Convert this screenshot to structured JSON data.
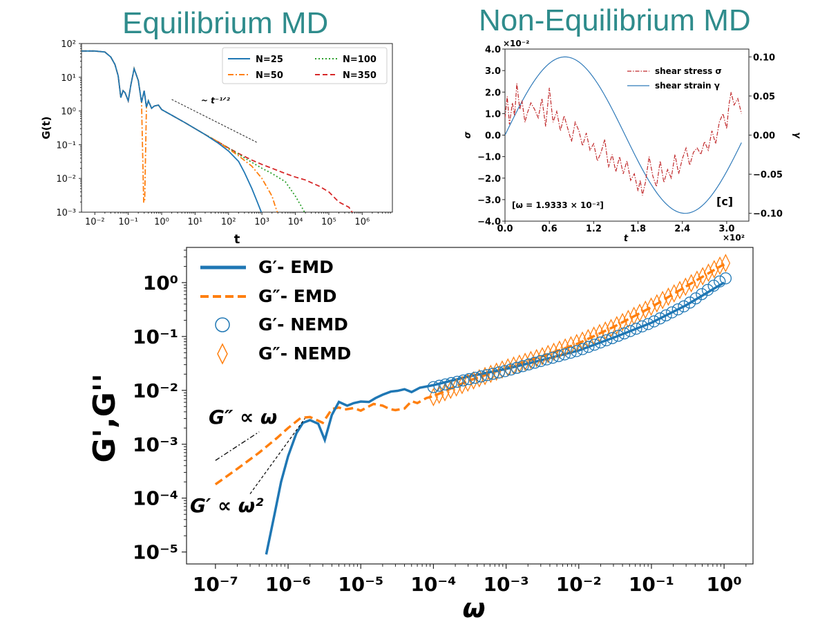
{
  "headings": {
    "left": "Equilibrium MD",
    "right": "Non-Equilibrium MD"
  },
  "chart_data": [
    {
      "id": "emd",
      "type": "line",
      "title": "Equilibrium MD",
      "xlabel": "t",
      "ylabel": "G(t)",
      "xscale": "log",
      "yscale": "log",
      "xlim": [
        0.004,
        8000000
      ],
      "ylim": [
        0.001,
        100
      ],
      "xticks": [
        0.01,
        0.1,
        1,
        10,
        100,
        1000,
        10000,
        100000,
        1000000
      ],
      "xtick_labels": [
        "10⁻²",
        "10⁻¹",
        "10⁰",
        "10¹",
        "10²",
        "10³",
        "10⁴",
        "10⁵",
        "10⁶"
      ],
      "yticks": [
        0.001,
        0.01,
        0.1,
        1,
        10,
        100
      ],
      "ytick_labels": [
        "10⁻³",
        "10⁻²",
        "10⁻¹",
        "10⁰",
        "10¹",
        "10²"
      ],
      "annotation": "~ t⁻¹ᐟ²",
      "slope_line": {
        "x": [
          2,
          700
        ],
        "y": [
          2.2,
          0.118
        ]
      },
      "legend_location": "upper right",
      "series": [
        {
          "name": "N=25",
          "color": "#1f77b4",
          "dash": "solid",
          "x": [
            0.004,
            0.01,
            0.02,
            0.03,
            0.04,
            0.05,
            0.06,
            0.07,
            0.08,
            0.1,
            0.12,
            0.15,
            0.2,
            0.25,
            0.3,
            0.35,
            0.4,
            0.5,
            0.6,
            0.8,
            1,
            2,
            5,
            10,
            20,
            50,
            100,
            200,
            300,
            500,
            700,
            1000
          ],
          "y": [
            60,
            60,
            56,
            40,
            24,
            11,
            2.5,
            4,
            3.5,
            2,
            6,
            18,
            8,
            1.8,
            4,
            1.3,
            2,
            1.2,
            1.4,
            1.5,
            1.1,
            0.75,
            0.45,
            0.3,
            0.2,
            0.11,
            0.065,
            0.032,
            0.015,
            0.005,
            0.0022,
            0.0009
          ]
        },
        {
          "name": "N=50",
          "color": "#ff7f0e",
          "dash": "dashdot",
          "x": [
            0.004,
            0.01,
            0.02,
            0.03,
            0.04,
            0.05,
            0.06,
            0.07,
            0.08,
            0.1,
            0.12,
            0.15,
            0.2,
            0.25,
            0.29,
            0.31,
            0.35,
            0.4,
            0.5,
            0.6,
            0.8,
            1,
            2,
            5,
            10,
            20,
            50,
            100,
            200,
            500,
            1000,
            2000,
            2500,
            3000
          ],
          "y": [
            60,
            60,
            56,
            40,
            24,
            11,
            2.5,
            4,
            3.5,
            2,
            6,
            18,
            8,
            1.8,
            0.002,
            0.002,
            1.3,
            2,
            1.2,
            1.4,
            1.5,
            1.1,
            0.75,
            0.45,
            0.3,
            0.2,
            0.12,
            0.075,
            0.047,
            0.023,
            0.01,
            0.003,
            0.0015,
            0.0009
          ]
        },
        {
          "name": "N=100",
          "color": "#2ca02c",
          "dash": "dotted",
          "x": [
            0.004,
            0.01,
            0.02,
            0.03,
            0.04,
            0.05,
            0.06,
            0.07,
            0.08,
            0.1,
            0.12,
            0.15,
            0.2,
            0.25,
            0.3,
            0.35,
            0.4,
            0.5,
            0.6,
            0.8,
            1,
            2,
            5,
            10,
            20,
            50,
            100,
            200,
            500,
            1000,
            2000,
            5000,
            10000,
            15000,
            20000
          ],
          "y": [
            60,
            60,
            56,
            40,
            24,
            11,
            2.5,
            4,
            3.5,
            2,
            6,
            18,
            8,
            1.8,
            4,
            1.3,
            2,
            1.2,
            1.4,
            1.5,
            1.1,
            0.75,
            0.45,
            0.3,
            0.2,
            0.12,
            0.08,
            0.052,
            0.03,
            0.02,
            0.014,
            0.008,
            0.003,
            0.0015,
            0.0009
          ]
        },
        {
          "name": "N=350",
          "color": "#d62728",
          "dash": "dashed",
          "x": [
            0.004,
            0.01,
            0.02,
            0.03,
            0.04,
            0.05,
            0.06,
            0.07,
            0.08,
            0.1,
            0.12,
            0.15,
            0.2,
            0.25,
            0.3,
            0.35,
            0.4,
            0.5,
            0.6,
            0.8,
            1,
            2,
            5,
            10,
            20,
            50,
            100,
            200,
            500,
            1000,
            2000,
            5000,
            10000,
            20000,
            50000,
            100000,
            200000,
            400000,
            500000,
            600000
          ],
          "y": [
            60,
            60,
            56,
            40,
            24,
            11,
            2.5,
            4,
            3.5,
            2,
            6,
            18,
            8,
            1.8,
            4,
            1.3,
            2,
            1.2,
            1.4,
            1.5,
            1.1,
            0.75,
            0.45,
            0.3,
            0.2,
            0.12,
            0.08,
            0.055,
            0.035,
            0.026,
            0.02,
            0.014,
            0.011,
            0.009,
            0.006,
            0.004,
            0.002,
            0.0014,
            0.001,
            0.0009
          ]
        }
      ]
    },
    {
      "id": "nemd",
      "type": "line",
      "title": "Non-Equilibrium MD",
      "xlabel": "t",
      "ylabel": "σ",
      "ylabel_right": "γ",
      "xlim": [
        0,
        3.3
      ],
      "ylim": [
        -4,
        4
      ],
      "ylim_right": [
        -0.11,
        0.11
      ],
      "xticks": [
        0,
        0.6,
        1.2,
        1.8,
        2.4,
        3.0
      ],
      "xtick_labels": [
        "0.0",
        "0.6",
        "1.2",
        "1.8",
        "2.4",
        "3.0"
      ],
      "yticks": [
        -4,
        -3,
        -2,
        -1,
        0,
        1,
        2,
        3,
        4
      ],
      "ytick_labels": [
        "−4.0",
        "−3.0",
        "−2.0",
        "−1.0",
        "0.0",
        "1.0",
        "2.0",
        "3.0",
        "4.0"
      ],
      "yticks_right": [
        -0.1,
        -0.05,
        0,
        0.05,
        0.1
      ],
      "ytick_labels_right": [
        "−0.10",
        "−0.05",
        "0.00",
        "0.05",
        "0.10"
      ],
      "x_offset_label": "×10²",
      "y_offset_label": "×10⁻²",
      "annotation": "[ω = 1.9333 × 10⁻²]",
      "panel_label": "[c]",
      "legend_location": "upper right",
      "series": [
        {
          "name": "shear stress σ",
          "color": "#c0282a",
          "dash": "dashdot",
          "axis": "left",
          "x": [
            0,
            0.03,
            0.06,
            0.1,
            0.13,
            0.16,
            0.2,
            0.23,
            0.27,
            0.3,
            0.35,
            0.4,
            0.45,
            0.5,
            0.55,
            0.6,
            0.65,
            0.7,
            0.75,
            0.8,
            0.85,
            0.9,
            0.95,
            1.0,
            1.05,
            1.1,
            1.15,
            1.2,
            1.25,
            1.3,
            1.35,
            1.4,
            1.45,
            1.5,
            1.55,
            1.6,
            1.65,
            1.7,
            1.75,
            1.8,
            1.83,
            1.86,
            1.9,
            1.95,
            2.0,
            2.05,
            2.1,
            2.15,
            2.2,
            2.25,
            2.3,
            2.35,
            2.4,
            2.45,
            2.5,
            2.55,
            2.6,
            2.65,
            2.7,
            2.75,
            2.8,
            2.85,
            2.9,
            2.95,
            3.0,
            3.03,
            3.06,
            3.1,
            3.15,
            3.2
          ],
          "y": [
            0.8,
            1.8,
            0.5,
            1.5,
            0.9,
            2.4,
            1.2,
            1.6,
            0.6,
            1.0,
            1.5,
            1.2,
            0.8,
            1.7,
            0.4,
            2.2,
            0.6,
            1.1,
            0.2,
            0.9,
            0.3,
            -0.3,
            0.6,
            0.2,
            -0.5,
            0.1,
            -0.7,
            -0.4,
            -1.2,
            -0.8,
            -0.2,
            -1.5,
            -0.9,
            -1.7,
            -1.0,
            -1.8,
            -1.2,
            -2.1,
            -1.8,
            -2.6,
            -2.1,
            -2.8,
            -2.2,
            -1.0,
            -1.9,
            -2.4,
            -1.2,
            -2.2,
            -1.6,
            -2.0,
            -0.9,
            -1.8,
            -1.1,
            -0.6,
            -1.4,
            -0.8,
            -0.6,
            -0.9,
            -0.3,
            -0.7,
            0.2,
            -0.4,
            0.6,
            1.0,
            0.3,
            1.4,
            2.0,
            1.4,
            1.7,
            1.0
          ]
        },
        {
          "name": "shear strain γ",
          "color": "#2f7ab9",
          "dash": "solid",
          "axis": "right",
          "function": "0.1*sin(x*100*0.019333)"
        }
      ]
    },
    {
      "id": "modulus",
      "type": "line",
      "xlabel": "ω",
      "ylabel": "G',G''",
      "xscale": "log",
      "yscale": "log",
      "xlim": [
        4e-08,
        2.5
      ],
      "ylim": [
        6e-06,
        4.5
      ],
      "xticks": [
        1e-07,
        1e-06,
        1e-05,
        0.0001,
        0.001,
        0.01,
        0.1,
        1
      ],
      "xtick_labels": [
        "10⁻⁷",
        "10⁻⁶",
        "10⁻⁵",
        "10⁻⁴",
        "10⁻³",
        "10⁻²",
        "10⁻¹",
        "10⁰"
      ],
      "yticks": [
        1e-05,
        0.0001,
        0.001,
        0.01,
        0.1,
        1
      ],
      "ytick_labels": [
        "10⁻⁵",
        "10⁻⁴",
        "10⁻³",
        "10⁻²",
        "10⁻¹",
        "10⁰"
      ],
      "annotations": [
        {
          "text": "G″ ∝ ω",
          "line": {
            "x": [
              1e-07,
              4e-07
            ],
            "y": [
              0.0005,
              0.0017
            ]
          }
        },
        {
          "text": "G′ ∝ ω²",
          "line": {
            "x": [
              3e-07,
              1.7e-06
            ],
            "y": [
              0.00012,
              0.003
            ]
          }
        }
      ],
      "legend_location": "upper left",
      "series": [
        {
          "name": "G′- EMD",
          "color": "#1f77b4",
          "style": "line-solid",
          "x": [
            5e-07,
            6.5e-07,
            8e-07,
            1e-06,
            1.3e-06,
            1.6e-06,
            2e-06,
            2.6e-06,
            3.2e-06,
            4e-06,
            5e-06,
            6.5e-06,
            8e-06,
            1e-05,
            1.3e-05,
            1.6e-05,
            2e-05,
            2.6e-05,
            3.2e-05,
            4e-05,
            5e-05,
            6.5e-05,
            8e-05,
            0.0001,
            0.0003,
            0.001,
            0.003,
            0.01,
            0.03,
            0.1,
            0.3,
            1
          ],
          "y": [
            9e-06,
            5e-05,
            0.0002,
            0.0006,
            0.0016,
            0.0025,
            0.0028,
            0.0024,
            0.0012,
            0.0035,
            0.0061,
            0.0052,
            0.0058,
            0.0062,
            0.0061,
            0.0072,
            0.0083,
            0.0095,
            0.0098,
            0.0105,
            0.0093,
            0.0112,
            0.0118,
            0.0125,
            0.018,
            0.025,
            0.036,
            0.055,
            0.095,
            0.18,
            0.38,
            1.0
          ]
        },
        {
          "name": "G″- EMD",
          "color": "#ff7f0e",
          "style": "line-dashed",
          "x": [
            1e-07,
            2e-07,
            4e-07,
            7e-07,
            1e-06,
            1.5e-06,
            2e-06,
            2.5e-06,
            3e-06,
            4e-06,
            5e-06,
            6e-06,
            8e-06,
            1e-05,
            1.5e-05,
            2e-05,
            2.5e-05,
            3e-05,
            4e-05,
            5e-05,
            6e-05,
            8e-05,
            0.0001,
            0.0003,
            0.001,
            0.003,
            0.01,
            0.03,
            0.1,
            0.3,
            1
          ],
          "y": [
            0.00018,
            0.00035,
            0.0007,
            0.0013,
            0.002,
            0.0031,
            0.0032,
            0.0028,
            0.0025,
            0.0045,
            0.0048,
            0.0044,
            0.0047,
            0.0042,
            0.0056,
            0.0052,
            0.0045,
            0.0043,
            0.0046,
            0.0063,
            0.0058,
            0.0072,
            0.0078,
            0.015,
            0.026,
            0.042,
            0.075,
            0.15,
            0.35,
            0.85,
            2.2
          ]
        },
        {
          "name": "G′- NEMD",
          "color": "#1f77b4",
          "style": "marker-circle",
          "x_range": [
            0.0001,
            1.05
          ],
          "count": 50,
          "x_anchor": [
            0.0001,
            0.0003,
            0.001,
            0.003,
            0.01,
            0.03,
            0.1,
            0.3,
            1
          ],
          "y_anchor": [
            0.0115,
            0.016,
            0.023,
            0.035,
            0.055,
            0.095,
            0.18,
            0.38,
            1.2
          ]
        },
        {
          "name": "G″- NEMD",
          "color": "#ff7f0e",
          "style": "marker-diamond",
          "x_range": [
            0.0001,
            1.05
          ],
          "count": 52,
          "x_anchor": [
            0.0001,
            0.0003,
            0.001,
            0.003,
            0.01,
            0.03,
            0.1,
            0.3,
            1
          ],
          "y_anchor": [
            0.0075,
            0.014,
            0.026,
            0.042,
            0.078,
            0.15,
            0.36,
            0.85,
            2.3
          ]
        }
      ]
    }
  ]
}
